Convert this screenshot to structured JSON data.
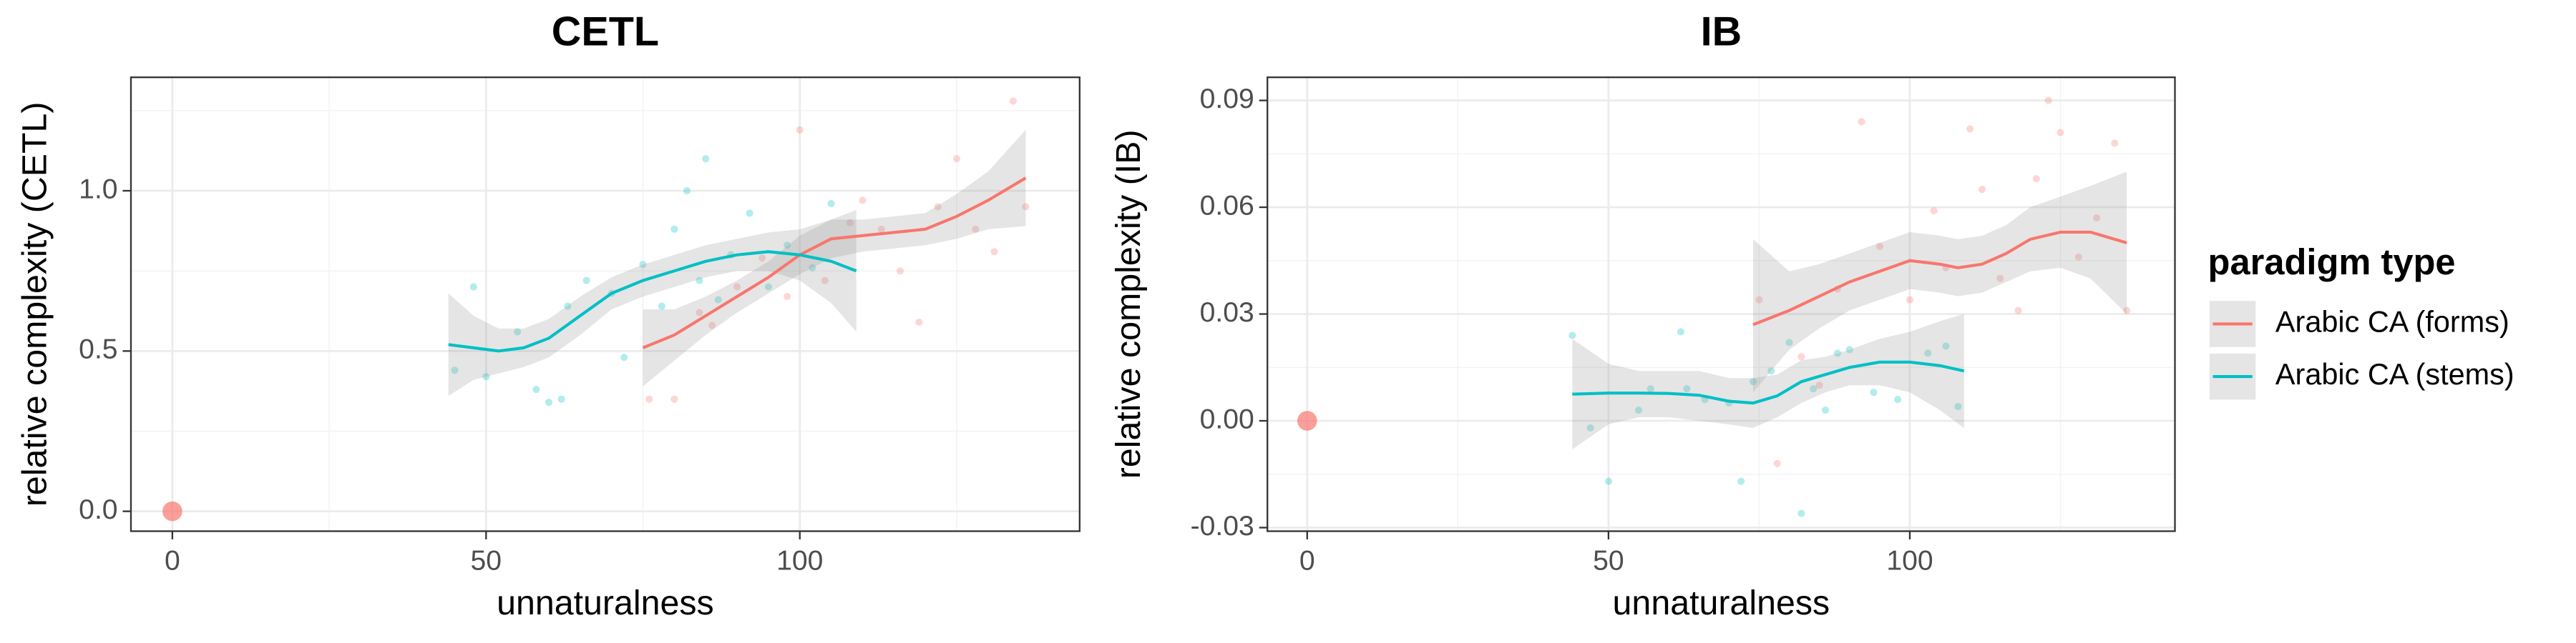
{
  "chart_data": [
    {
      "type": "scatter",
      "title": "CETL",
      "xlabel": "unnaturalness",
      "ylabel": "relative complexity (CETL)",
      "xlim": [
        -6.6,
        144.6
      ],
      "ylim": [
        -0.062,
        1.354
      ],
      "xticks": [
        0,
        50,
        100
      ],
      "yticks": [
        {
          "value": 0,
          "label": "0.0"
        },
        0.5,
        {
          "value": 1,
          "label": "1.0"
        }
      ],
      "grid": true,
      "reference_point": {
        "x": 0,
        "y": 0,
        "color": "#F8766D"
      },
      "series": [
        {
          "name": "Arabic CA (forms)",
          "color": "#F8766D",
          "x": [
            76,
            80,
            84,
            86,
            90,
            94,
            98,
            100,
            104,
            108,
            110,
            113,
            116,
            119,
            122,
            125,
            128,
            131,
            134,
            136
          ],
          "y": [
            0.35,
            0.35,
            0.62,
            0.58,
            0.7,
            0.79,
            0.67,
            1.19,
            0.72,
            0.9,
            0.97,
            0.88,
            0.75,
            0.59,
            0.95,
            1.1,
            0.88,
            0.81,
            1.28,
            0.95
          ],
          "fit_x": [
            75,
            80,
            85,
            90,
            95,
            100,
            105,
            110,
            115,
            120,
            125,
            130,
            136
          ],
          "fit_y": [
            0.51,
            0.55,
            0.61,
            0.67,
            0.73,
            0.8,
            0.85,
            0.86,
            0.87,
            0.88,
            0.92,
            0.97,
            1.04
          ],
          "fit_lower": [
            0.39,
            0.47,
            0.55,
            0.62,
            0.68,
            0.74,
            0.79,
            0.81,
            0.82,
            0.83,
            0.85,
            0.88,
            0.89
          ],
          "fit_upper": [
            0.63,
            0.63,
            0.67,
            0.72,
            0.78,
            0.86,
            0.91,
            0.91,
            0.92,
            0.93,
            0.99,
            1.06,
            1.19
          ]
        },
        {
          "name": "Arabic CA (stems)",
          "color": "#00BFC4",
          "x": [
            45,
            48,
            50,
            55,
            58,
            60,
            62,
            63,
            66,
            70,
            72,
            75,
            78,
            80,
            82,
            84,
            85,
            87,
            89,
            92,
            95,
            98,
            102,
            105
          ],
          "y": [
            0.44,
            0.7,
            0.42,
            0.56,
            0.38,
            0.34,
            0.35,
            0.64,
            0.72,
            0.68,
            0.48,
            0.77,
            0.64,
            0.88,
            1.0,
            0.72,
            1.1,
            0.66,
            0.8,
            0.93,
            0.7,
            0.83,
            0.76,
            0.96
          ],
          "fit_x": [
            44,
            48,
            52,
            56,
            60,
            65,
            70,
            75,
            80,
            85,
            90,
            95,
            100,
            105,
            109
          ],
          "fit_y": [
            0.52,
            0.51,
            0.5,
            0.51,
            0.54,
            0.61,
            0.68,
            0.72,
            0.75,
            0.78,
            0.8,
            0.81,
            0.8,
            0.78,
            0.75
          ],
          "fit_lower": [
            0.36,
            0.41,
            0.43,
            0.45,
            0.48,
            0.55,
            0.63,
            0.67,
            0.7,
            0.73,
            0.75,
            0.75,
            0.72,
            0.65,
            0.56
          ],
          "fit_upper": [
            0.68,
            0.61,
            0.57,
            0.57,
            0.6,
            0.67,
            0.73,
            0.77,
            0.8,
            0.83,
            0.85,
            0.87,
            0.88,
            0.91,
            0.94
          ]
        }
      ]
    },
    {
      "type": "scatter",
      "title": "IB",
      "xlabel": "unnaturalness",
      "ylabel": "relative complexity (IB)",
      "xlim": [
        -6.6,
        144
      ],
      "ylim": [
        -0.031,
        0.0965
      ],
      "xticks": [
        0,
        50,
        100
      ],
      "yticks": [
        -0.03,
        {
          "value": 0,
          "label": "0.00"
        },
        0.03,
        0.06,
        0.09
      ],
      "grid": true,
      "reference_point": {
        "x": 0,
        "y": 0,
        "color": "#F8766D"
      },
      "series": [
        {
          "name": "Arabic CA (forms)",
          "color": "#F8766D",
          "x": [
            75,
            78,
            82,
            85,
            88,
            92,
            95,
            100,
            104,
            106,
            110,
            112,
            115,
            118,
            121,
            123,
            125,
            128,
            131,
            134,
            136
          ],
          "y": [
            0.034,
            -0.012,
            0.018,
            0.01,
            0.037,
            0.084,
            0.049,
            0.034,
            0.059,
            0.043,
            0.082,
            0.065,
            0.04,
            0.031,
            0.068,
            0.09,
            0.081,
            0.046,
            0.057,
            0.078,
            0.031
          ],
          "fit_x": [
            74,
            80,
            85,
            90,
            95,
            100,
            105,
            108,
            112,
            116,
            120,
            125,
            130,
            136
          ],
          "fit_y": [
            0.027,
            0.031,
            0.035,
            0.039,
            0.042,
            0.045,
            0.044,
            0.043,
            0.044,
            0.047,
            0.051,
            0.053,
            0.053,
            0.05
          ],
          "fit_lower": [
            0.008,
            0.02,
            0.026,
            0.031,
            0.034,
            0.037,
            0.036,
            0.035,
            0.036,
            0.039,
            0.042,
            0.043,
            0.04,
            0.03
          ],
          "fit_upper": [
            0.051,
            0.042,
            0.044,
            0.047,
            0.05,
            0.053,
            0.052,
            0.051,
            0.052,
            0.055,
            0.06,
            0.063,
            0.066,
            0.07
          ]
        },
        {
          "name": "Arabic CA (stems)",
          "color": "#00BFC4",
          "x": [
            44,
            47,
            50,
            55,
            57,
            62,
            63,
            66,
            70,
            72,
            74,
            77,
            80,
            82,
            84,
            86,
            88,
            90,
            94,
            98,
            103,
            106,
            108
          ],
          "y": [
            0.024,
            -0.002,
            -0.017,
            0.003,
            0.009,
            0.025,
            0.009,
            0.006,
            0.005,
            -0.017,
            0.011,
            0.014,
            0.022,
            -0.026,
            0.009,
            0.003,
            0.019,
            0.02,
            0.008,
            0.006,
            0.019,
            0.021,
            0.004
          ],
          "fit_x": [
            44,
            50,
            55,
            60,
            65,
            70,
            74,
            78,
            82,
            86,
            90,
            95,
            100,
            105,
            109
          ],
          "fit_y": [
            0.0075,
            0.0078,
            0.0078,
            0.0077,
            0.0072,
            0.0055,
            0.005,
            0.007,
            0.011,
            0.013,
            0.015,
            0.0165,
            0.0165,
            0.0155,
            0.014
          ],
          "fit_lower": [
            -0.008,
            -0.001,
            0.001,
            0.001,
            0.0,
            -0.001,
            -0.002,
            0.001,
            0.005,
            0.008,
            0.01,
            0.01,
            0.008,
            0.003,
            -0.002
          ],
          "fit_upper": [
            0.023,
            0.016,
            0.014,
            0.014,
            0.014,
            0.012,
            0.012,
            0.013,
            0.017,
            0.018,
            0.02,
            0.023,
            0.025,
            0.028,
            0.03
          ]
        }
      ]
    }
  ],
  "legend_title": "paradigm type"
}
